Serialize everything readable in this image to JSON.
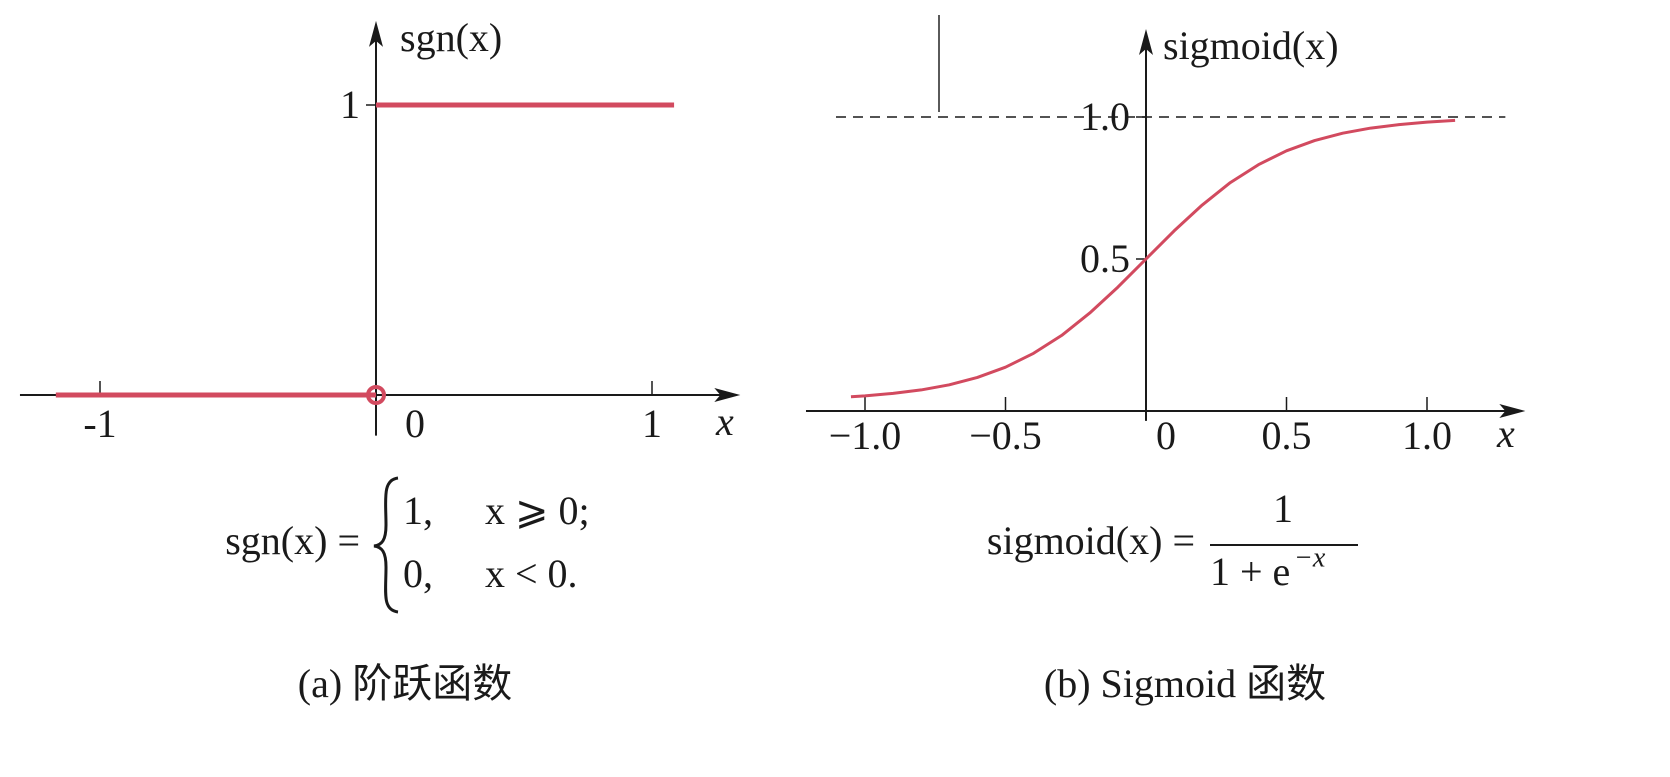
{
  "charts": [
    {
      "chart_data": {
        "type": "step",
        "y_label": "sgn(x)",
        "x_label": "x",
        "xlim": [
          -1.29,
          1.32
        ],
        "ylim": [
          -0.14,
          1.29
        ],
        "xticks": [
          -1,
          0,
          1
        ],
        "yticks": [
          1
        ],
        "grid": false,
        "series": [
          {
            "name": "sgn",
            "color": "#d24a5f",
            "x": [
              -1.16,
              0,
              0,
              0,
              1.08
            ],
            "values": [
              0,
              0,
              null,
              1,
              1
            ]
          }
        ]
      },
      "formula": {
        "lhs": "sgn(x) =",
        "cases": [
          [
            "1,",
            "x ⩾ 0;"
          ],
          [
            "0,",
            "x < 0."
          ]
        ]
      },
      "caption": "(a) 阶跃函数"
    },
    {
      "chart_data": {
        "type": "line",
        "y_label": "sigmoid(x)",
        "x_label": "x",
        "xlim": [
          -1.21,
          1.35
        ],
        "ylim": [
          -0.07,
          1.31
        ],
        "xticks": [
          {
            "value": -1,
            "label": "−1.0"
          },
          {
            "value": -0.5,
            "label": "−0.5"
          },
          0,
          0.5,
          {
            "value": 1,
            "label": "1.0"
          }
        ],
        "yticks": [
          0.5,
          {
            "value": 1,
            "label": "1.0"
          }
        ],
        "grid": false,
        "asymptote": 1,
        "series": [
          {
            "name": "sigmoid",
            "color": "#d24a5f",
            "x": [
              -1.05,
              -1.0,
              -0.9,
              -0.8,
              -0.7,
              -0.6,
              -0.5,
              -0.4,
              -0.3,
              -0.2,
              -0.1,
              0,
              0.1,
              0.2,
              0.3,
              0.4,
              0.5,
              0.6,
              0.7,
              0.8,
              0.9,
              1.0,
              1.1
            ],
            "values": [
              0.015,
              0.018,
              0.027,
              0.039,
              0.057,
              0.083,
              0.119,
              0.168,
              0.231,
              0.31,
              0.401,
              0.5,
              0.599,
              0.69,
              0.769,
              0.832,
              0.881,
              0.917,
              0.943,
              0.961,
              0.973,
              0.982,
              0.988
            ]
          }
        ]
      },
      "formula": {
        "lhs": "sigmoid(x) =",
        "numerator": "1",
        "denominator": "1 + e",
        "exponent": "−x"
      },
      "caption": "(b) Sigmoid 函数"
    }
  ]
}
